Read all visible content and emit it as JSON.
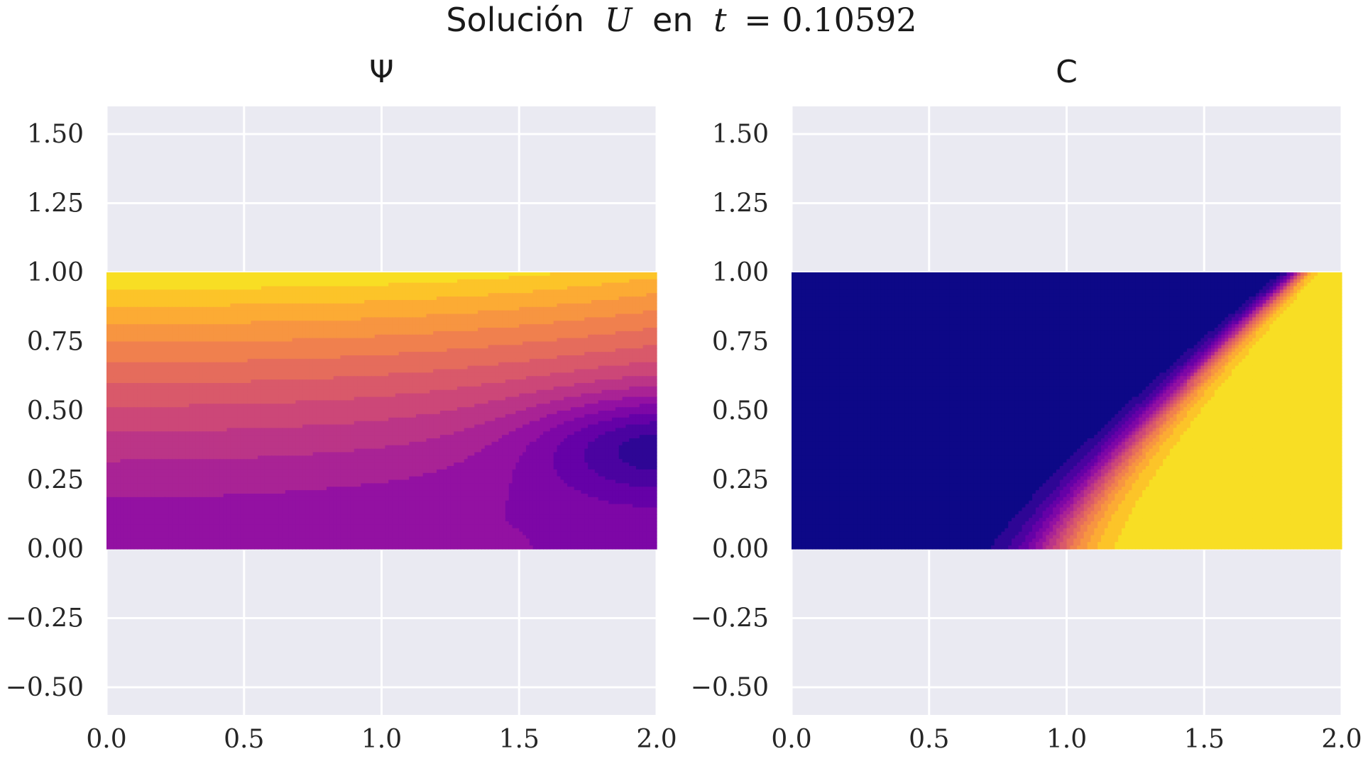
{
  "figure": {
    "suptitle_text": "Solución",
    "suptitle_var": "U",
    "suptitle_mid": "en",
    "suptitle_t": "t",
    "suptitle_eq": "= 0.10592"
  },
  "chart_data": [
    {
      "type": "heatmap",
      "title": "Ψ",
      "colormap": "plasma",
      "background": "#eaeaf2",
      "grid": true,
      "xlim": [
        0.0,
        2.0
      ],
      "ylim": [
        -0.6,
        1.6
      ],
      "xticks": [
        0.0,
        0.5,
        1.0,
        1.5,
        2.0
      ],
      "xtick_labels": [
        "0.0",
        "0.5",
        "1.0",
        "1.5",
        "2.0"
      ],
      "yticks": [
        -0.5,
        -0.25,
        0.0,
        0.25,
        0.5,
        0.75,
        1.0,
        1.25,
        1.5
      ],
      "ytick_labels": [
        "−0.50",
        "−0.25",
        "0.00",
        "0.25",
        "0.50",
        "0.75",
        "1.00",
        "1.25",
        "1.50"
      ],
      "domain": {
        "x": [
          0.0,
          2.0
        ],
        "y": [
          0.0,
          1.0
        ]
      },
      "field": "psi",
      "levels": 16
    },
    {
      "type": "heatmap",
      "title": "C",
      "colormap": "plasma",
      "background": "#eaeaf2",
      "grid": true,
      "xlim": [
        0.0,
        2.0
      ],
      "ylim": [
        -0.6,
        1.6
      ],
      "xticks": [
        0.0,
        0.5,
        1.0,
        1.5,
        2.0
      ],
      "xtick_labels": [
        "0.0",
        "0.5",
        "1.0",
        "1.5",
        "2.0"
      ],
      "yticks": [
        -0.5,
        -0.25,
        0.0,
        0.25,
        0.5,
        0.75,
        1.0,
        1.25,
        1.5
      ],
      "ytick_labels": [
        "−0.50",
        "−0.25",
        "0.00",
        "0.25",
        "0.50",
        "0.75",
        "1.00",
        "1.25",
        "1.50"
      ],
      "domain": {
        "x": [
          0.0,
          2.0
        ],
        "y": [
          0.0,
          1.0
        ]
      },
      "field": "c",
      "levels": 16
    }
  ]
}
